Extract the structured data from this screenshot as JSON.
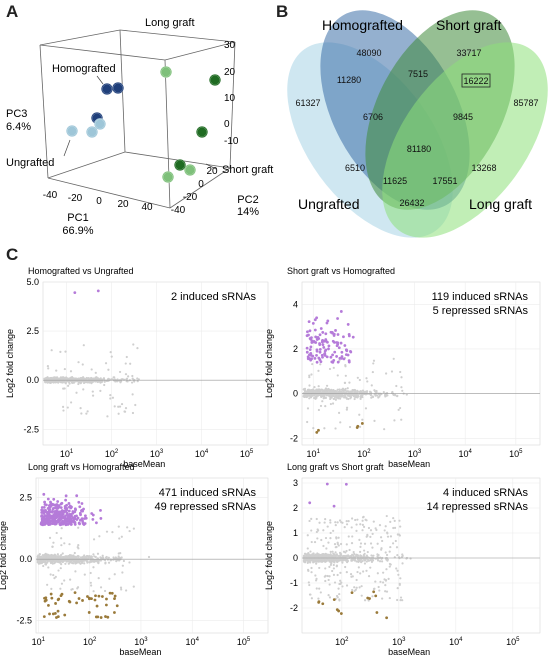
{
  "panels": {
    "a": "A",
    "b": "B",
    "c": "C"
  },
  "pca": {
    "axes": {
      "pc1": "PC1",
      "pc1_var": "66.9%",
      "pc2": "PC2",
      "pc2_var": "14%",
      "pc3": "PC3",
      "pc3_var": "6.4%"
    },
    "ticks": {
      "pc1": [
        "-40",
        "-20",
        "0",
        "20",
        "40"
      ],
      "pc2": [
        "-40",
        "-20",
        "0",
        "20"
      ],
      "pc3": [
        "30",
        "20",
        "10",
        "0",
        "-10"
      ]
    },
    "groups": [
      {
        "name": "Long graft",
        "color": "#7ec07a"
      },
      {
        "name": "Homografted",
        "color": "#1f3f7a"
      },
      {
        "name": "Ungrafted",
        "color": "#9ec6d8"
      },
      {
        "name": "Short graft",
        "color": "#1f6b22"
      }
    ]
  },
  "venn": {
    "sets": [
      {
        "name": "Homografted",
        "color": "#3d6fa8"
      },
      {
        "name": "Short graft",
        "color": "#3f8a3a"
      },
      {
        "name": "Ungrafted",
        "color": "#a8d4e6"
      },
      {
        "name": "Long graft",
        "color": "#8ee07a"
      }
    ],
    "counts": {
      "H_only": "48090",
      "S_only": "33717",
      "U_only": "61327",
      "L_only": "85787",
      "HS": "7515",
      "SL_boxed": "16222",
      "UH": "11280",
      "UHS": "6706",
      "HSL": "9845",
      "UHSL": "81180",
      "US": "6510",
      "UHL": "11625",
      "USL": "17551",
      "HL": "13268",
      "UL": "26432"
    }
  },
  "chart_data": [
    {
      "type": "scatter",
      "title": "Homografted vs Ungrafted",
      "annotation_lines": [
        "2 induced sRNAs"
      ],
      "xlabel": "baseMean",
      "ylabel": "Log2 fold change",
      "x_scale": "log",
      "xlim": [
        3,
        300000
      ],
      "ylim": [
        -3.3,
        5
      ],
      "x_ticks": [
        10,
        100,
        1000,
        10000,
        100000
      ],
      "y_ticks": [
        "-2.5",
        "0.0",
        "2.5",
        "5.0"
      ],
      "induced": 2,
      "repressed": 0
    },
    {
      "type": "scatter",
      "title": "Short graft vs Homografted",
      "annotation_lines": [
        "119 induced sRNAs",
        "5 repressed sRNAs"
      ],
      "xlabel": "baseMean",
      "ylabel": "Log2 fold change",
      "x_scale": "log",
      "xlim": [
        6,
        300000
      ],
      "ylim": [
        -2.3,
        5
      ],
      "x_ticks": [
        10,
        100,
        1000,
        10000,
        100000
      ],
      "y_ticks": [
        "-2",
        "0",
        "2",
        "4"
      ],
      "induced": 119,
      "repressed": 5
    },
    {
      "type": "scatter",
      "title": "Long graft vs Homografted",
      "annotation_lines": [
        "471 induced sRNAs",
        "49 repressed sRNAs"
      ],
      "xlabel": "baseMean",
      "ylabel": "Log2 fold change",
      "x_scale": "log",
      "xlim": [
        9,
        300000
      ],
      "ylim": [
        -3,
        3.3
      ],
      "x_ticks": [
        10,
        100,
        1000,
        10000,
        100000
      ],
      "y_ticks": [
        "-2.5",
        "0.0",
        "2.5"
      ],
      "induced": 471,
      "repressed": 49
    },
    {
      "type": "scatter",
      "title": "Long graft vs Short graft",
      "annotation_lines": [
        "4 induced sRNAs",
        "14 repressed sRNAs"
      ],
      "xlabel": "baseMean",
      "ylabel": "Log2 fold change",
      "x_scale": "log",
      "xlim": [
        20,
        300000
      ],
      "ylim": [
        -3,
        3.2
      ],
      "x_ticks": [
        100,
        1000,
        10000,
        100000
      ],
      "y_ticks": [
        "-2",
        "-1",
        "0",
        "1",
        "2",
        "3"
      ],
      "induced": 4,
      "repressed": 14
    }
  ],
  "colors": {
    "induced": "#b57bd9",
    "repressed": "#9a7a3a",
    "bulk": "#cfcfcf",
    "zero_line": "#999999"
  }
}
